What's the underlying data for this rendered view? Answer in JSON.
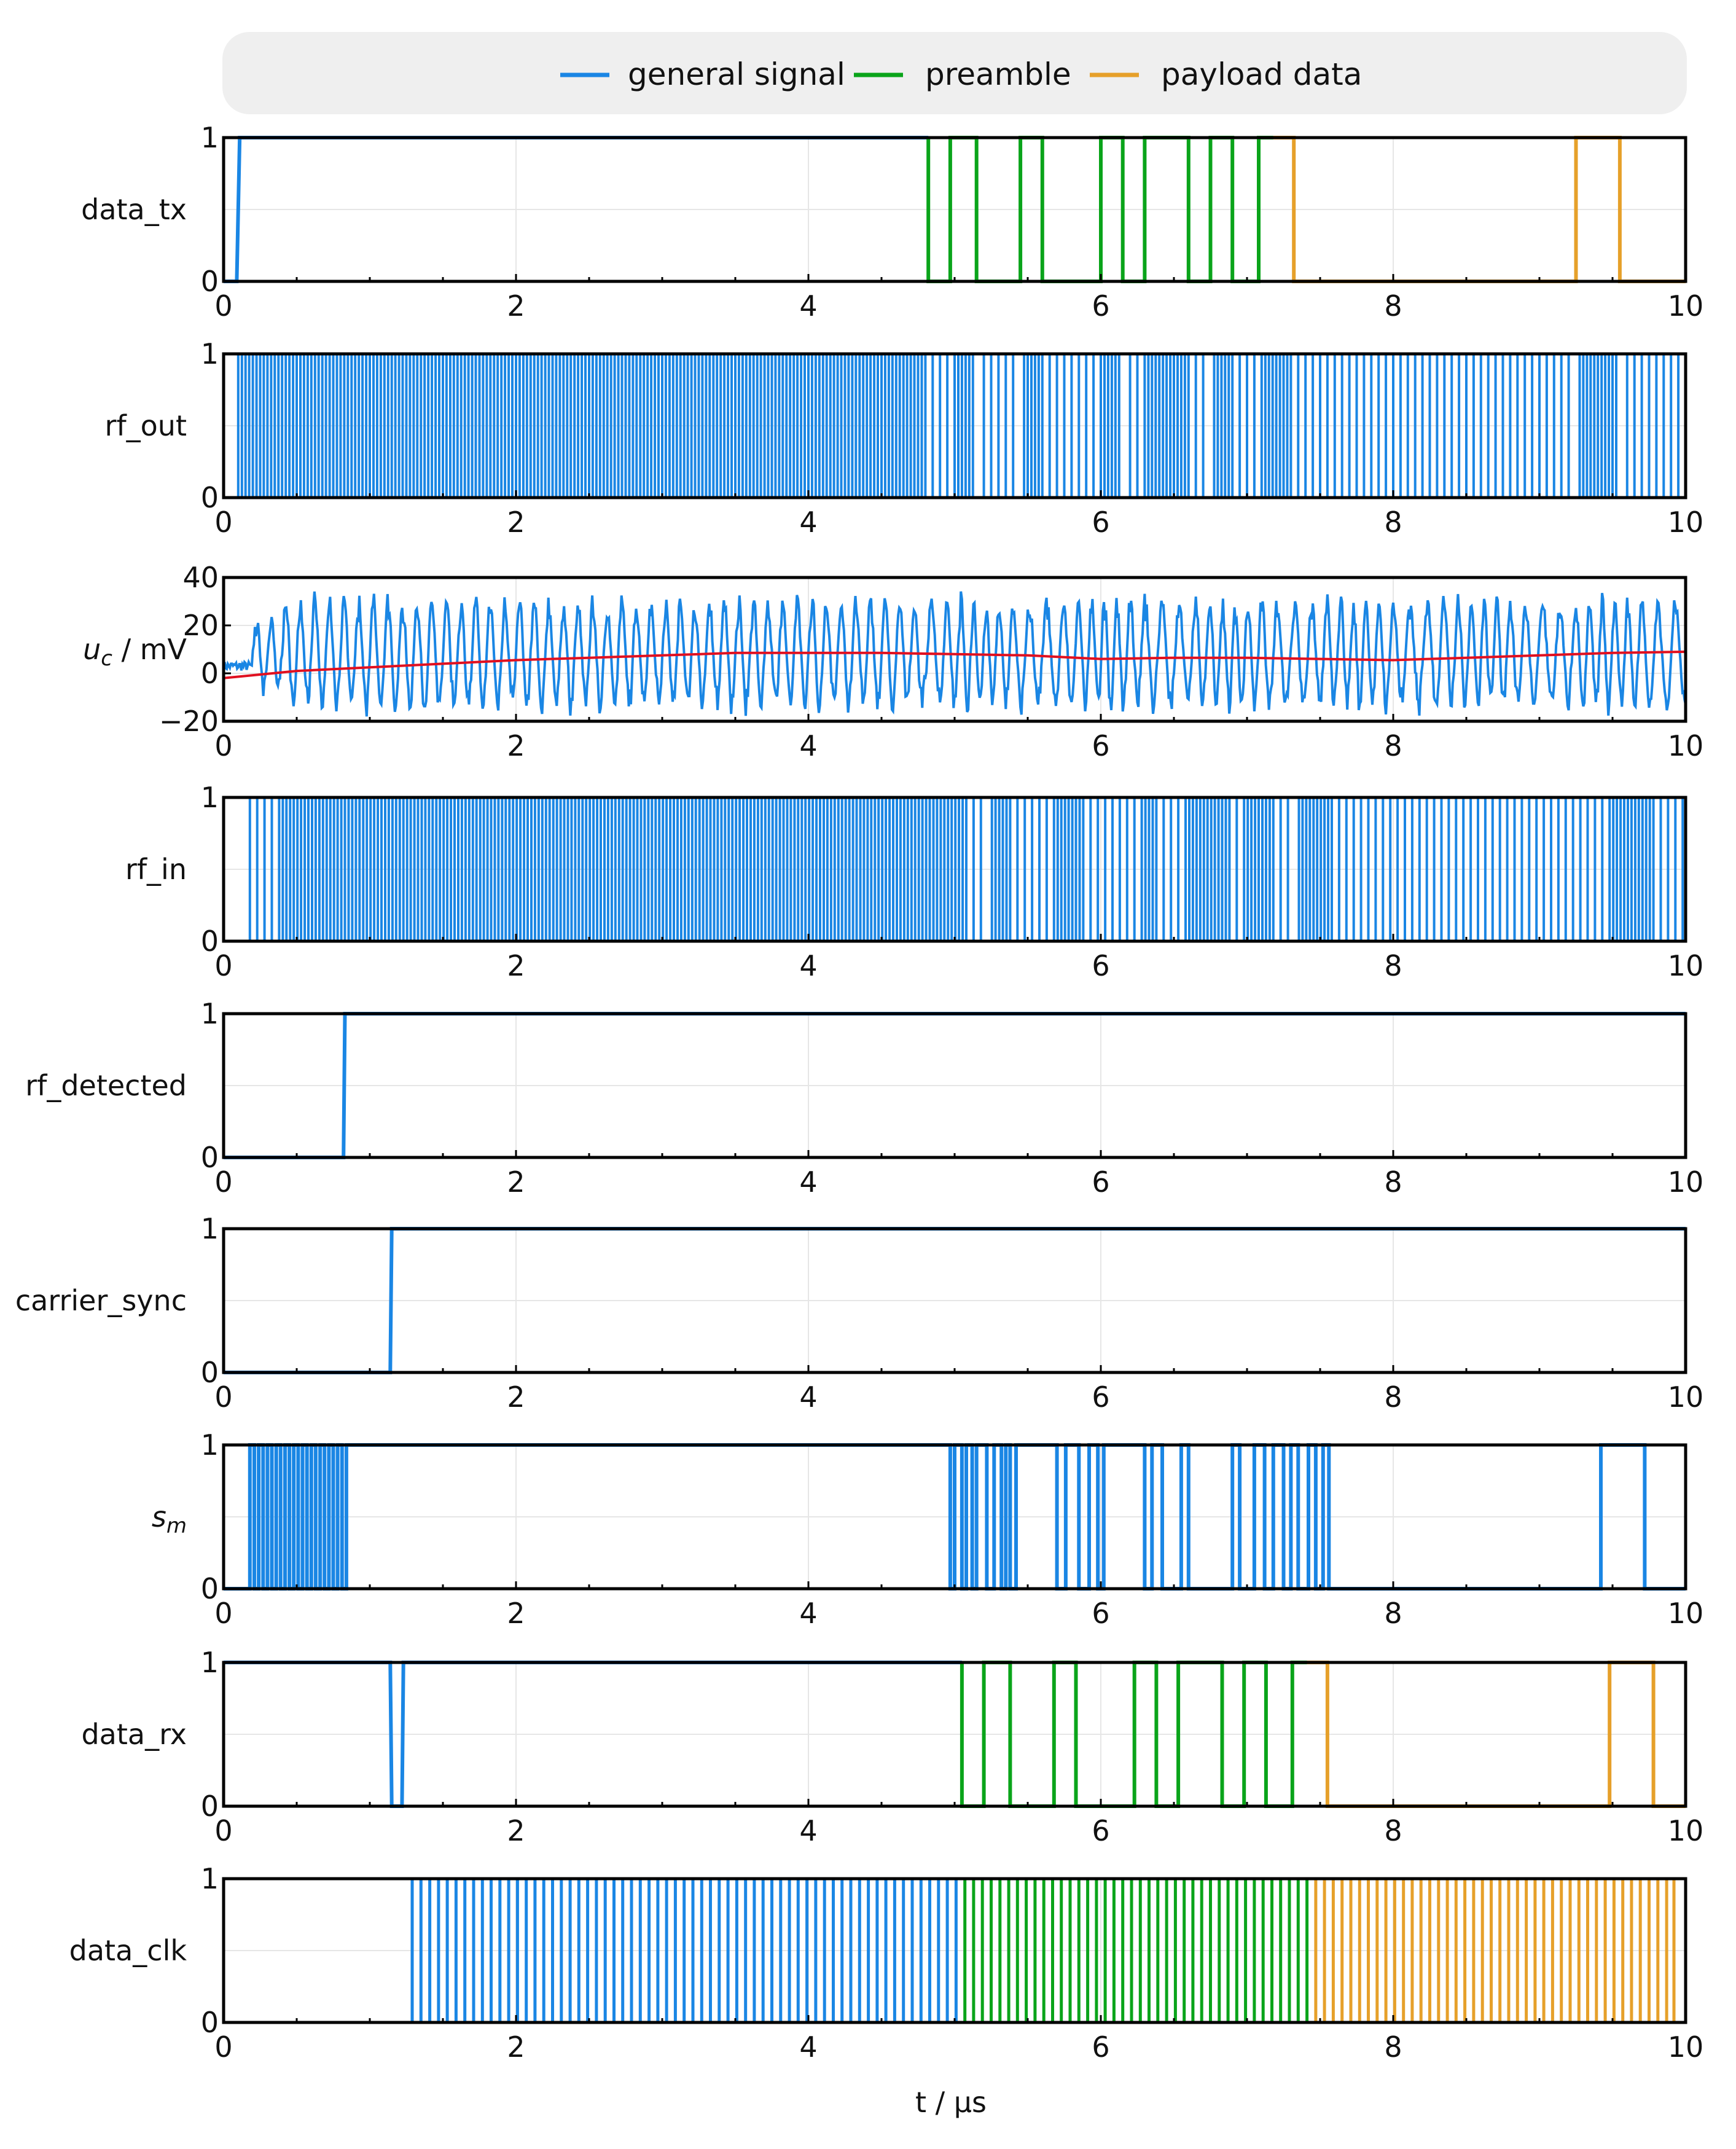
{
  "chart_data": {
    "type": "line",
    "xlabel": "t / μs",
    "xlim": [
      0,
      10
    ],
    "xticks": [
      0,
      2,
      4,
      6,
      8,
      10
    ],
    "legend": {
      "placement": "top-center",
      "entries": [
        {
          "name": "general signal",
          "color": "#1a86e4"
        },
        {
          "name": "preamble",
          "color": "#0aa41a"
        },
        {
          "name": "payload data",
          "color": "#e6a02a"
        }
      ]
    },
    "colors": {
      "general": "#1a86e4",
      "preamble": "#0aa41a",
      "payload": "#e6a02a",
      "mean": "#e01020",
      "frame": "#000000",
      "grid": "#e6e6e6"
    },
    "panels": [
      {
        "id": "data_tx",
        "ylabel": "data_tx",
        "ylim": [
          0,
          1
        ],
        "yticks": [
          {
            "v": 0,
            "label": "0"
          },
          {
            "v": 1,
            "label": "1"
          }
        ],
        "series": [
          {
            "name": "general signal",
            "color_key": "general",
            "x": [
              0,
              0.09,
              0.11,
              4.82
            ],
            "y": [
              0,
              0,
              1,
              1
            ]
          },
          {
            "name": "preamble",
            "color_key": "preamble",
            "x": [
              4.82,
              4.82,
              4.97,
              4.97,
              5.15,
              5.15,
              5.45,
              5.45,
              5.6,
              5.6,
              6.0,
              6.0,
              6.15,
              6.15,
              6.3,
              6.3,
              6.6,
              6.6,
              6.75,
              6.75,
              6.9,
              6.9,
              7.08,
              7.08,
              7.18
            ],
            "y": [
              1,
              0,
              0,
              1,
              1,
              0,
              0,
              1,
              1,
              0,
              0,
              1,
              1,
              0,
              0,
              1,
              1,
              0,
              0,
              1,
              1,
              0,
              0,
              1,
              1
            ]
          },
          {
            "name": "payload data",
            "color_key": "payload",
            "x": [
              7.18,
              7.18,
              7.32,
              7.32,
              9.25,
              9.25,
              9.55,
              9.55,
              10
            ],
            "y": [
              1,
              1,
              1,
              0,
              0,
              1,
              1,
              0,
              0
            ]
          }
        ]
      },
      {
        "id": "rf_out",
        "ylabel": "rf_out",
        "ylim": [
          0,
          1
        ],
        "yticks": [
          {
            "v": 0,
            "label": "0"
          },
          {
            "v": 1,
            "label": "1"
          }
        ],
        "generated": {
          "kind": "carrier",
          "start": 0.1,
          "period": 0.05,
          "gated_by": "data_tx",
          "color_key": "general"
        }
      },
      {
        "id": "u_c",
        "ylabel": "u",
        "ylabel_sub": "c",
        "ylabel_unit": " / mV",
        "ylim": [
          -20,
          40
        ],
        "yticks": [
          {
            "v": -20,
            "label": "−20"
          },
          {
            "v": 0,
            "label": "0"
          },
          {
            "v": 20,
            "label": "20"
          },
          {
            "v": 40,
            "label": "40"
          }
        ],
        "generated": {
          "kind": "analog",
          "amplitude_approx": 22,
          "range": [
            -18,
            38
          ],
          "color_key": "general"
        },
        "series": [
          {
            "name": "mean",
            "color_key": "mean",
            "x": [
              0,
              0.5,
              1,
              1.5,
              2,
              2.5,
              3,
              3.5,
              4,
              4.5,
              5,
              5.5,
              6,
              6.5,
              7,
              7.5,
              8,
              8.5,
              9,
              9.5,
              10
            ],
            "y": [
              -2,
              1,
              2.5,
              4,
              5.5,
              6.5,
              7.5,
              8.5,
              8.5,
              8.5,
              8,
              7.5,
              6,
              6.5,
              6.5,
              6,
              5.5,
              6.5,
              7.5,
              8.5,
              9
            ]
          }
        ]
      },
      {
        "id": "rf_in",
        "ylabel": "rf_in",
        "ylim": [
          0,
          1
        ],
        "yticks": [
          {
            "v": 0,
            "label": "0"
          },
          {
            "v": 1,
            "label": "1"
          }
        ],
        "generated": {
          "kind": "carrier",
          "start": 0.18,
          "period": 0.05,
          "gated_by": "data_tx_delayed",
          "color_key": "general"
        }
      },
      {
        "id": "rf_detected",
        "ylabel": "rf_detected",
        "ylim": [
          0,
          1
        ],
        "yticks": [
          {
            "v": 0,
            "label": "0"
          },
          {
            "v": 1,
            "label": "1"
          }
        ],
        "series": [
          {
            "name": "general signal",
            "color_key": "general",
            "x": [
              0,
              0.82,
              0.83,
              10
            ],
            "y": [
              0,
              0,
              1,
              1
            ]
          }
        ]
      },
      {
        "id": "carrier_sync",
        "ylabel": "carrier_sync",
        "ylim": [
          0,
          1
        ],
        "yticks": [
          {
            "v": 0,
            "label": "0"
          },
          {
            "v": 1,
            "label": "1"
          }
        ],
        "series": [
          {
            "name": "general signal",
            "color_key": "general",
            "x": [
              0,
              1.14,
              1.15,
              10
            ],
            "y": [
              0,
              0,
              1,
              1
            ]
          }
        ]
      },
      {
        "id": "s_m",
        "ylabel": "s",
        "ylabel_sub": "m",
        "ylim": [
          0,
          1
        ],
        "yticks": [
          {
            "v": 0,
            "label": "0"
          },
          {
            "v": 1,
            "label": "1"
          }
        ],
        "series": [
          {
            "name": "general signal",
            "color_key": "general",
            "x": [
              0,
              0.18,
              0.18,
              0.21,
              0.21,
              0.24,
              0.24,
              0.27,
              0.27,
              0.3,
              0.3,
              0.33,
              0.33,
              0.36,
              0.36,
              0.39,
              0.39,
              0.42,
              0.42,
              0.45,
              0.45,
              0.48,
              0.48,
              0.51,
              0.51,
              0.54,
              0.54,
              0.57,
              0.57,
              0.6,
              0.6,
              0.63,
              0.63,
              0.66,
              0.66,
              0.69,
              0.69,
              0.72,
              0.72,
              0.75,
              0.75,
              0.78,
              0.78,
              0.81,
              0.81,
              0.84,
              0.84,
              4.97,
              4.97,
              5.0,
              5.0,
              5.05,
              5.05,
              5.08,
              5.08,
              5.12,
              5.12,
              5.15,
              5.15,
              5.22,
              5.22,
              5.27,
              5.27,
              5.32,
              5.32,
              5.35,
              5.35,
              5.38,
              5.38,
              5.42,
              5.42,
              5.7,
              5.7,
              5.76,
              5.76,
              5.85,
              5.85,
              5.92,
              5.92,
              5.98,
              5.98,
              6.02,
              6.02,
              6.3,
              6.3,
              6.35,
              6.35,
              6.42,
              6.42,
              6.55,
              6.55,
              6.6,
              6.6,
              6.9,
              6.9,
              6.95,
              6.95,
              7.05,
              7.05,
              7.12,
              7.12,
              7.18,
              7.18,
              7.25,
              7.25,
              7.3,
              7.3,
              7.35,
              7.35,
              7.42,
              7.42,
              7.47,
              7.47,
              7.52,
              7.52,
              7.56,
              7.56,
              9.42,
              9.42,
              9.72,
              9.72,
              10
            ],
            "y": [
              0,
              0,
              1,
              1,
              0,
              0,
              1,
              1,
              0,
              0,
              1,
              1,
              0,
              0,
              1,
              1,
              0,
              0,
              1,
              1,
              0,
              0,
              1,
              1,
              0,
              0,
              1,
              1,
              0,
              0,
              1,
              1,
              0,
              0,
              1,
              1,
              0,
              0,
              1,
              1,
              0,
              0,
              1,
              1,
              0,
              0,
              1,
              1,
              0,
              0,
              1,
              1,
              0,
              0,
              1,
              1,
              0,
              0,
              1,
              1,
              0,
              0,
              1,
              1,
              0,
              0,
              1,
              1,
              0,
              0,
              1,
              1,
              0,
              0,
              1,
              1,
              0,
              0,
              1,
              1,
              0,
              0,
              1,
              1,
              0,
              0,
              1,
              1,
              0,
              0,
              1,
              1,
              0,
              0,
              1,
              1,
              0,
              0,
              1,
              1,
              0,
              0,
              1,
              1,
              0,
              0,
              1,
              1,
              0,
              0,
              1,
              1,
              0,
              0,
              1,
              1,
              0,
              0,
              1,
              1,
              0,
              0
            ]
          }
        ]
      },
      {
        "id": "data_rx",
        "ylabel": "data_rx",
        "ylim": [
          0,
          1
        ],
        "yticks": [
          {
            "v": 0,
            "label": "0"
          },
          {
            "v": 1,
            "label": "1"
          }
        ],
        "series": [
          {
            "name": "general signal",
            "color_key": "general",
            "x": [
              0,
              1.14,
              1.15,
              1.22,
              1.23,
              5.05
            ],
            "y": [
              1,
              1,
              0,
              0,
              1,
              1
            ]
          },
          {
            "name": "preamble",
            "color_key": "preamble",
            "x": [
              5.05,
              5.05,
              5.2,
              5.2,
              5.38,
              5.38,
              5.68,
              5.68,
              5.83,
              5.83,
              6.23,
              6.23,
              6.38,
              6.38,
              6.53,
              6.53,
              6.83,
              6.83,
              6.98,
              6.98,
              7.13,
              7.13,
              7.31,
              7.31,
              7.41
            ],
            "y": [
              1,
              0,
              0,
              1,
              1,
              0,
              0,
              1,
              1,
              0,
              0,
              1,
              1,
              0,
              0,
              1,
              1,
              0,
              0,
              1,
              1,
              0,
              0,
              1,
              1
            ]
          },
          {
            "name": "payload data",
            "color_key": "payload",
            "x": [
              7.41,
              7.41,
              7.55,
              7.55,
              9.48,
              9.48,
              9.78,
              9.78,
              10
            ],
            "y": [
              1,
              1,
              1,
              0,
              0,
              1,
              1,
              0,
              0
            ]
          }
        ]
      },
      {
        "id": "data_clk",
        "ylabel": "data_clk",
        "ylim": [
          0,
          1
        ],
        "yticks": [
          {
            "v": 0,
            "label": "0"
          },
          {
            "v": 1,
            "label": "1"
          }
        ],
        "generated": {
          "kind": "clock",
          "start": 1.29,
          "half_period": 0.06,
          "end": 9.92,
          "segments": [
            {
              "until": 5.05,
              "color_key": "general"
            },
            {
              "until": 7.41,
              "color_key": "preamble"
            },
            {
              "until": 10,
              "color_key": "payload"
            }
          ]
        }
      }
    ]
  }
}
